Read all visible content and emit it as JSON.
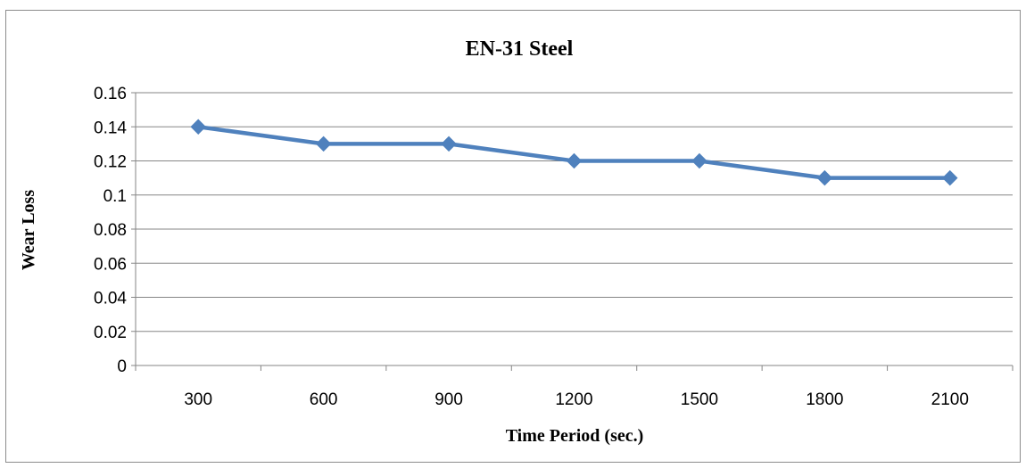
{
  "chart_data": {
    "type": "line",
    "title": "EN-31 Steel",
    "xlabel": "Time Period (sec.)",
    "ylabel": "Wear Loss",
    "categories": [
      "300",
      "600",
      "900",
      "1200",
      "1500",
      "1800",
      "2100"
    ],
    "series": [
      {
        "values": [
          0.14,
          0.13,
          0.13,
          0.12,
          0.12,
          0.11,
          0.11
        ],
        "color": "#4f81bd",
        "marker": "diamond"
      }
    ],
    "ylim": [
      0,
      0.16
    ],
    "yticks": [
      "0",
      "0.02",
      "0.04",
      "0.06",
      "0.08",
      "0.1",
      "0.12",
      "0.14",
      "0.16"
    ],
    "grid": true,
    "legend": "none"
  }
}
